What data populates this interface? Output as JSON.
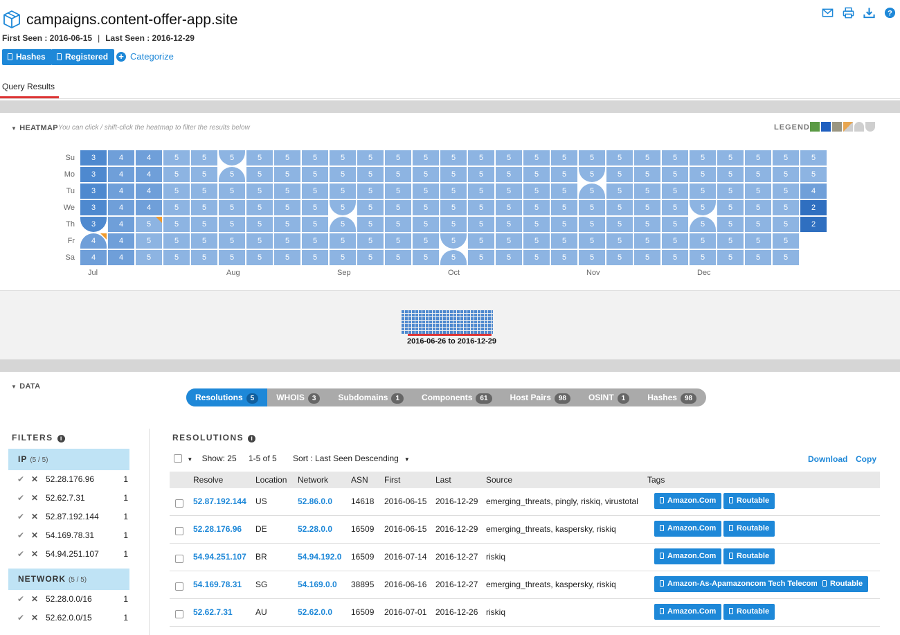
{
  "header": {
    "title": "campaigns.content-offer-app.site",
    "first_seen": "First Seen : 2016-06-15",
    "separator": "|",
    "last_seen": "Last Seen : 2016-12-29",
    "buttons": {
      "hashes": "Hashes",
      "registered": "Registered",
      "categorize": "Categorize"
    },
    "icons": [
      "mail-icon",
      "print-icon",
      "download-icon",
      "help-icon"
    ]
  },
  "tabs": {
    "query_results": "Query Results"
  },
  "heatmap": {
    "label": "HEATMAP",
    "hint": "You can click / shift-click the heatmap to filter the results below",
    "legend_label": "LEGEND",
    "legend_colors": [
      "#5b9a45",
      "#1f5fbf",
      "#9a9682",
      "#d9a15a",
      "#cfcfcf",
      "#cfcfcf"
    ],
    "days": [
      "Su",
      "Mo",
      "Tu",
      "We",
      "Th",
      "Fr",
      "Sa"
    ],
    "months": [
      "Jul",
      "Aug",
      "Sep",
      "Oct",
      "Nov",
      "Dec"
    ],
    "weeks": [
      [
        3,
        3,
        3,
        3,
        3,
        4,
        4
      ],
      [
        4,
        4,
        4,
        4,
        4,
        4,
        4
      ],
      [
        4,
        4,
        4,
        4,
        5,
        5,
        5
      ],
      [
        5,
        5,
        5,
        5,
        5,
        5,
        5
      ],
      [
        5,
        5,
        5,
        5,
        5,
        5,
        5
      ],
      [
        5,
        5,
        5,
        5,
        5,
        5,
        5
      ],
      [
        5,
        5,
        5,
        5,
        5,
        5,
        5
      ],
      [
        5,
        5,
        5,
        5,
        5,
        5,
        5
      ],
      [
        5,
        5,
        5,
        5,
        5,
        5,
        5
      ],
      [
        5,
        5,
        5,
        5,
        5,
        5,
        5
      ],
      [
        5,
        5,
        5,
        5,
        5,
        5,
        5
      ],
      [
        5,
        5,
        5,
        5,
        5,
        5,
        5
      ],
      [
        5,
        5,
        5,
        5,
        5,
        5,
        5
      ],
      [
        5,
        5,
        5,
        5,
        5,
        5,
        5
      ],
      [
        5,
        5,
        5,
        5,
        5,
        5,
        5
      ],
      [
        5,
        5,
        5,
        5,
        5,
        5,
        5
      ],
      [
        5,
        5,
        5,
        5,
        5,
        5,
        5
      ],
      [
        5,
        5,
        5,
        5,
        5,
        5,
        5
      ],
      [
        5,
        5,
        5,
        5,
        5,
        5,
        5
      ],
      [
        5,
        5,
        5,
        5,
        5,
        5,
        5
      ],
      [
        5,
        5,
        5,
        5,
        5,
        5,
        5
      ],
      [
        5,
        5,
        5,
        5,
        5,
        5,
        5
      ],
      [
        5,
        5,
        5,
        5,
        5,
        5,
        5
      ],
      [
        5,
        5,
        5,
        5,
        5,
        5,
        5
      ],
      [
        5,
        5,
        5,
        5,
        5,
        5,
        5
      ],
      [
        5,
        5,
        5,
        5,
        5,
        5,
        5
      ],
      [
        5,
        5,
        4,
        2,
        2,
        null,
        null
      ]
    ]
  },
  "timeline": {
    "range": "2016-06-26 to 2016-12-29"
  },
  "data_section": {
    "label": "DATA",
    "tabs": [
      {
        "label": "Resolutions",
        "count": "5"
      },
      {
        "label": "WHOIS",
        "count": "3"
      },
      {
        "label": "Subdomains",
        "count": "1"
      },
      {
        "label": "Components",
        "count": "61"
      },
      {
        "label": "Host Pairs",
        "count": "98"
      },
      {
        "label": "OSINT",
        "count": "1"
      },
      {
        "label": "Hashes",
        "count": "98"
      }
    ]
  },
  "filters": {
    "title": "FILTERS",
    "groups": [
      {
        "name": "IP",
        "count": "(5 / 5)",
        "items": [
          {
            "value": "52.28.176.96",
            "n": "1"
          },
          {
            "value": "52.62.7.31",
            "n": "1"
          },
          {
            "value": "52.87.192.144",
            "n": "1"
          },
          {
            "value": "54.169.78.31",
            "n": "1"
          },
          {
            "value": "54.94.251.107",
            "n": "1"
          }
        ]
      },
      {
        "name": "NETWORK",
        "count": "(5 / 5)",
        "items": [
          {
            "value": "52.28.0.0/16",
            "n": "1"
          },
          {
            "value": "52.62.0.0/15",
            "n": "1"
          }
        ]
      }
    ]
  },
  "resolutions": {
    "title": "RESOLUTIONS",
    "show": "Show: 25",
    "range": "1-5 of 5",
    "sort": "Sort : Last Seen Descending",
    "download": "Download",
    "copy": "Copy",
    "columns": [
      "Resolve",
      "Location",
      "Network",
      "ASN",
      "First",
      "Last",
      "Source",
      "Tags"
    ],
    "rows": [
      {
        "resolve": "52.87.192.144",
        "location": "US",
        "network": "52.86.0.0",
        "asn": "14618",
        "first": "2016-06-15",
        "last": "2016-12-29",
        "source": "emerging_threats, pingly, riskiq, virustotal",
        "tags": [
          "Amazon.Com",
          "Routable"
        ]
      },
      {
        "resolve": "52.28.176.96",
        "location": "DE",
        "network": "52.28.0.0",
        "asn": "16509",
        "first": "2016-06-15",
        "last": "2016-12-29",
        "source": "emerging_threats, kaspersky, riskiq",
        "tags": [
          "Amazon.Com",
          "Routable"
        ]
      },
      {
        "resolve": "54.94.251.107",
        "location": "BR",
        "network": "54.94.192.0",
        "asn": "16509",
        "first": "2016-07-14",
        "last": "2016-12-27",
        "source": "riskiq",
        "tags": [
          "Amazon.Com",
          "Routable"
        ]
      },
      {
        "resolve": "54.169.78.31",
        "location": "SG",
        "network": "54.169.0.0",
        "asn": "38895",
        "first": "2016-06-16",
        "last": "2016-12-27",
        "source": "emerging_threats, kaspersky, riskiq",
        "tags": [
          "Amazon-As-Apamazoncom Tech Telecom",
          "Routable"
        ]
      },
      {
        "resolve": "52.62.7.31",
        "location": "AU",
        "network": "52.62.0.0",
        "asn": "16509",
        "first": "2016-07-01",
        "last": "2016-12-26",
        "source": "riskiq",
        "tags": [
          "Amazon.Com",
          "Routable"
        ]
      }
    ]
  }
}
